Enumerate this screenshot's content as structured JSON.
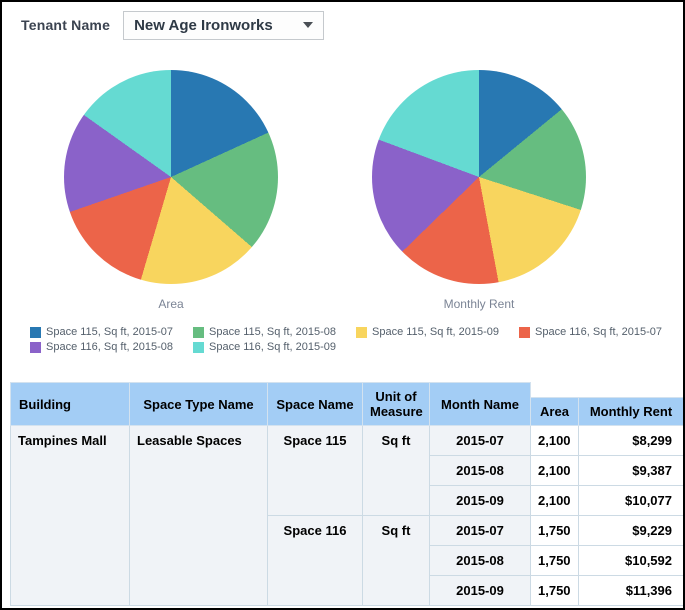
{
  "filter": {
    "label": "Tenant Name",
    "value": "New Age Ironworks"
  },
  "series_colors": [
    "#2878b2",
    "#66bd80",
    "#f8d55e",
    "#ec6449",
    "#8a62c9",
    "#65dad2"
  ],
  "legend": [
    "Space 115, Sq ft, 2015-07",
    "Space 115, Sq ft, 2015-08",
    "Space 115, Sq ft, 2015-09",
    "Space 116, Sq ft, 2015-07",
    "Space 116, Sq ft, 2015-08",
    "Space 116, Sq ft, 2015-09"
  ],
  "chart_data": [
    {
      "type": "pie",
      "title": "Area",
      "labels": [
        "Space 115, Sq ft, 2015-07",
        "Space 115, Sq ft, 2015-08",
        "Space 115, Sq ft, 2015-09",
        "Space 116, Sq ft, 2015-07",
        "Space 116, Sq ft, 2015-08",
        "Space 116, Sq ft, 2015-09"
      ],
      "values": [
        2100,
        2100,
        2100,
        1750,
        1750,
        1750
      ],
      "legend_position": "bottom"
    },
    {
      "type": "pie",
      "title": "Monthly Rent",
      "labels": [
        "Space 115, Sq ft, 2015-07",
        "Space 115, Sq ft, 2015-08",
        "Space 115, Sq ft, 2015-09",
        "Space 116, Sq ft, 2015-07",
        "Space 116, Sq ft, 2015-08",
        "Space 116, Sq ft, 2015-09"
      ],
      "values": [
        8299,
        9387,
        10077,
        9229,
        10592,
        11396
      ],
      "legend_position": "bottom"
    }
  ],
  "table": {
    "columns": [
      "Building",
      "Space Type Name",
      "Space Name",
      "Unit of Measure",
      "Month Name"
    ],
    "measures": [
      "Area",
      "Monthly Rent"
    ],
    "rows": [
      [
        {
          "text": "Tampines Mall",
          "span": 6,
          "kind": "rowhead",
          "align": "left",
          "vtop": true
        },
        {
          "text": "Leasable Spaces",
          "span": 6,
          "kind": "rowhead",
          "align": "left",
          "vtop": true
        },
        {
          "text": "Space 115",
          "span": 3,
          "kind": "rowhead",
          "align": "center",
          "vtop": true
        },
        {
          "text": "Sq ft",
          "span": 3,
          "kind": "rowhead",
          "align": "center",
          "vtop": true
        },
        {
          "text": "2015-07",
          "kind": "rowhead",
          "align": "center"
        },
        {
          "text": "2,100",
          "kind": "data",
          "align": "right"
        },
        {
          "text": "$8,299",
          "kind": "data",
          "align": "right"
        }
      ],
      [
        {
          "text": "2015-08",
          "kind": "rowhead",
          "align": "center"
        },
        {
          "text": "2,100",
          "kind": "data",
          "align": "right"
        },
        {
          "text": "$9,387",
          "kind": "data",
          "align": "right"
        }
      ],
      [
        {
          "text": "2015-09",
          "kind": "rowhead",
          "align": "center"
        },
        {
          "text": "2,100",
          "kind": "data",
          "align": "right"
        },
        {
          "text": "$10,077",
          "kind": "data",
          "align": "right"
        }
      ],
      [
        {
          "text": "Space 116",
          "span": 3,
          "kind": "rowhead",
          "align": "center",
          "vtop": true
        },
        {
          "text": "Sq ft",
          "span": 3,
          "kind": "rowhead",
          "align": "center",
          "vtop": true
        },
        {
          "text": "2015-07",
          "kind": "rowhead",
          "align": "center"
        },
        {
          "text": "1,750",
          "kind": "data",
          "align": "right"
        },
        {
          "text": "$9,229",
          "kind": "data",
          "align": "right"
        }
      ],
      [
        {
          "text": "2015-08",
          "kind": "rowhead",
          "align": "center"
        },
        {
          "text": "1,750",
          "kind": "data",
          "align": "right"
        },
        {
          "text": "$10,592",
          "kind": "data",
          "align": "right"
        }
      ],
      [
        {
          "text": "2015-09",
          "kind": "rowhead",
          "align": "center"
        },
        {
          "text": "1,750",
          "kind": "data",
          "align": "right"
        },
        {
          "text": "$11,396",
          "kind": "data",
          "align": "right"
        }
      ]
    ]
  }
}
